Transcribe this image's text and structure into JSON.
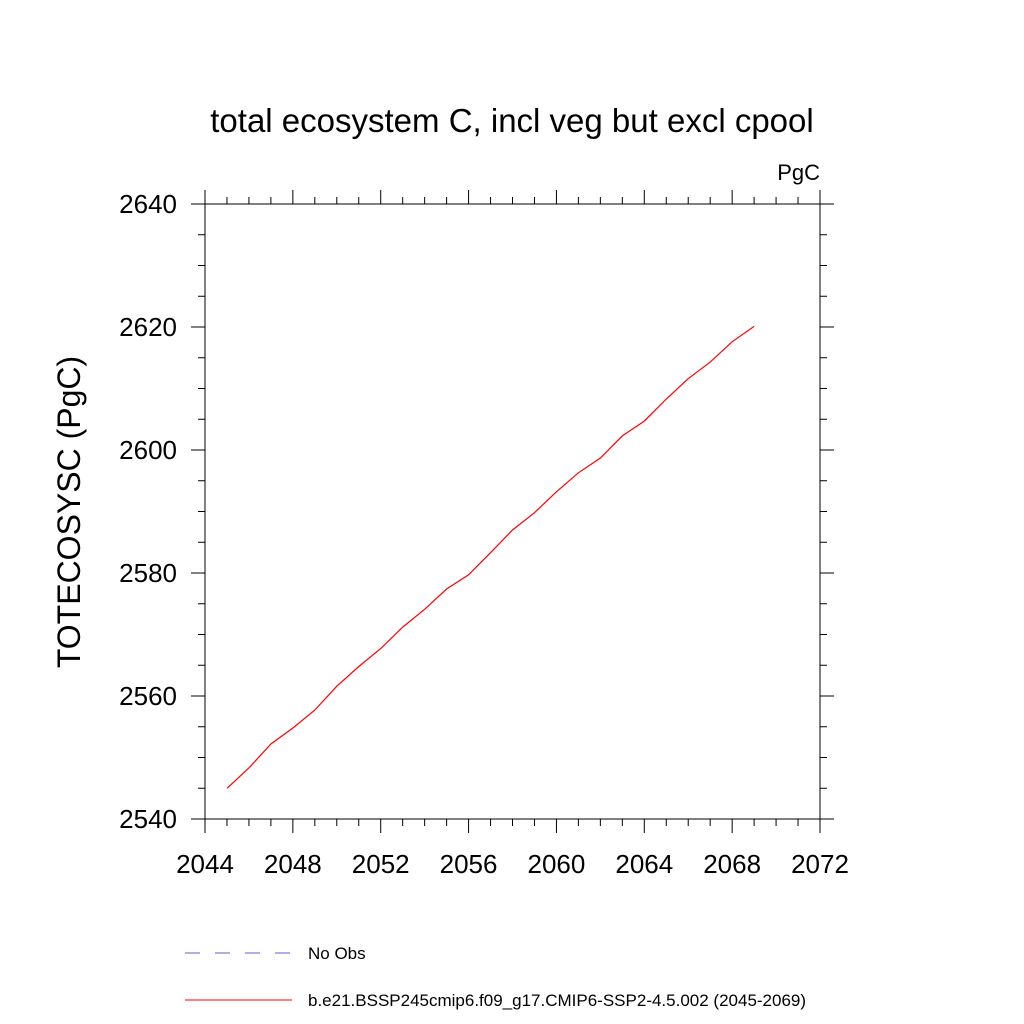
{
  "chart_data": {
    "type": "line",
    "title": "total ecosystem C, incl veg but excl cpool",
    "units_label": "PgC",
    "ylabel": "TOTECOSYSC  (PgC)",
    "xlabel": "",
    "xlim": [
      2044,
      2072
    ],
    "ylim": [
      2540,
      2640
    ],
    "x_ticks": [
      2044,
      2048,
      2052,
      2056,
      2060,
      2064,
      2068,
      2072
    ],
    "y_ticks": [
      2540,
      2560,
      2580,
      2600,
      2620,
      2640
    ],
    "x_minor_step": 1,
    "y_minor_step": 5,
    "grid": false,
    "legend_position": "bottom-left",
    "series": [
      {
        "name": "No Obs",
        "color": "#6a5acd",
        "dash": "dashed",
        "x": [],
        "y": []
      },
      {
        "name": "b.e21.BSSP245cmip6.f09_g17.CMIP6-SSP2-4.5.002 (2045-2069)",
        "color": "#ff0000",
        "dash": "solid",
        "x": [
          2045,
          2046,
          2047,
          2048,
          2049,
          2050,
          2051,
          2052,
          2053,
          2054,
          2055,
          2056,
          2057,
          2058,
          2059,
          2060,
          2061,
          2062,
          2063,
          2064,
          2065,
          2066,
          2067,
          2068,
          2069
        ],
        "y": [
          2545.0,
          2548.3,
          2552.2,
          2554.8,
          2557.7,
          2561.6,
          2564.8,
          2567.7,
          2571.2,
          2574.1,
          2577.4,
          2579.7,
          2583.3,
          2587.0,
          2589.8,
          2593.2,
          2596.3,
          2598.7,
          2602.3,
          2604.7,
          2608.3,
          2611.6,
          2614.3,
          2617.6,
          2620.1
        ]
      }
    ]
  }
}
